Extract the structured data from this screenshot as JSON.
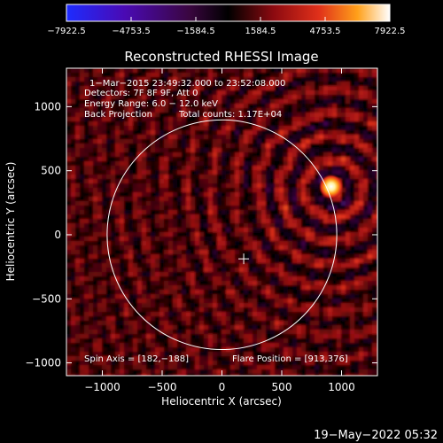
{
  "chart_data": {
    "type": "heatmap",
    "title": "Reconstructed RHESSI Image",
    "xlabel": "Heliocentric X (arcsec)",
    "ylabel": "Heliocentric Y (arcsec)",
    "xlim": [
      -1300,
      1300
    ],
    "ylim": [
      -1100,
      1300
    ],
    "x_ticks": [
      -1000,
      -500,
      0,
      500,
      1000
    ],
    "x_tick_labels": [
      "−1000",
      "−500",
      "0",
      "500",
      "1000"
    ],
    "y_ticks": [
      -1000,
      -500,
      0,
      500,
      1000
    ],
    "y_tick_labels": [
      "−1000",
      "−500",
      "0",
      "500",
      "1000"
    ],
    "colorbar": {
      "min": -7922.5,
      "max": 7922.5,
      "ticks": [
        -7922.5,
        -4753.5,
        -1584.5,
        1584.5,
        4753.5,
        7922.5
      ],
      "tick_labels": [
        "−7922.5",
        "−4753.5",
        "−1584.5",
        "1584.5",
        "4753.5",
        "7922.5"
      ],
      "colors": [
        "#1d2cff",
        "#4a0ab4",
        "#3a0640",
        "#000000",
        "#8c0a10",
        "#e0301a",
        "#ffa01a",
        "#ffffff"
      ]
    },
    "solar_disk": {
      "center": [
        0,
        0
      ],
      "radius": 960
    },
    "disk_center_marker": [
      182,
      -188
    ],
    "flare_source": {
      "x": 913,
      "y": 376,
      "value": 7922.5
    },
    "grid": false,
    "legend": "none"
  },
  "annotations": {
    "time": "1−Mar−2015 23:49:32.000 to 23:52:08.000",
    "detectors": "Detectors: 7F 8F 9F, Att 0",
    "energy": "Energy Range: 6.0 − 12.0 keV",
    "method": "Back Projection",
    "counts": "Total counts: 1.17E+04",
    "spin_axis": "Spin Axis = [182,−188]",
    "flare_position": "Flare Position = [913,376]"
  },
  "footer": {
    "date": "19−May−2022 05:32"
  }
}
